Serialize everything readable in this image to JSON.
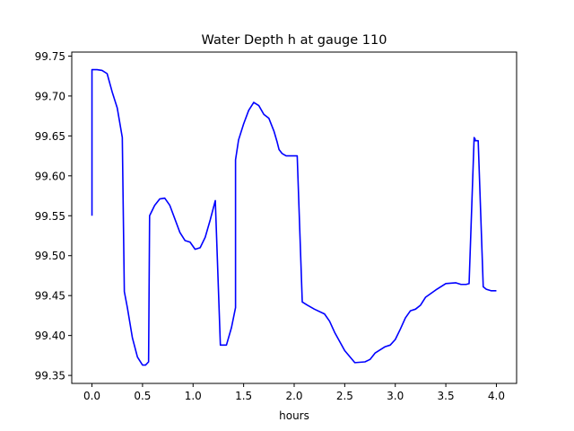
{
  "chart_data": {
    "type": "line",
    "title": "Water Depth h at gauge 110",
    "xlabel": "hours",
    "ylabel": "",
    "xlim": [
      -0.2,
      4.2
    ],
    "ylim": [
      99.34,
      99.755
    ],
    "xticks": [
      0.0,
      0.5,
      1.0,
      1.5,
      2.0,
      2.5,
      3.0,
      3.5,
      4.0
    ],
    "xtick_labels": [
      "0.0",
      "0.5",
      "1.0",
      "1.5",
      "2.0",
      "2.5",
      "3.0",
      "3.5",
      "4.0"
    ],
    "yticks": [
      99.35,
      99.4,
      99.45,
      99.5,
      99.55,
      99.6,
      99.65,
      99.7,
      99.75
    ],
    "ytick_labels": [
      "99.35",
      "99.40",
      "99.45",
      "99.50",
      "99.55",
      "99.60",
      "99.65",
      "99.70",
      "99.75"
    ],
    "grid": false,
    "legend": "none",
    "series": [
      {
        "color": "#0000ff",
        "x": [
          0.0,
          0.0,
          0.05,
          0.1,
          0.15,
          0.2,
          0.25,
          0.3,
          0.32,
          0.32,
          0.35,
          0.4,
          0.45,
          0.5,
          0.53,
          0.56,
          0.57,
          0.57,
          0.62,
          0.67,
          0.72,
          0.77,
          0.82,
          0.87,
          0.92,
          0.97,
          1.02,
          1.07,
          1.12,
          1.17,
          1.22,
          1.27,
          1.33,
          1.33,
          1.38,
          1.42,
          1.42,
          1.45,
          1.5,
          1.55,
          1.6,
          1.65,
          1.7,
          1.75,
          1.8,
          1.83,
          1.85,
          1.88,
          1.92,
          1.97,
          2.0,
          2.03,
          2.08,
          2.08,
          2.13,
          2.2,
          2.3,
          2.35,
          2.4,
          2.5,
          2.6,
          2.7,
          2.75,
          2.8,
          2.9,
          2.95,
          3.0,
          3.05,
          3.1,
          3.15,
          3.2,
          3.25,
          3.3,
          3.4,
          3.5,
          3.6,
          3.65,
          3.7,
          3.73,
          3.78,
          3.79,
          3.79,
          3.82,
          3.87,
          3.87,
          3.9,
          3.95,
          4.0
        ],
        "y": [
          99.55,
          99.733,
          99.733,
          99.732,
          99.728,
          99.705,
          99.685,
          99.648,
          99.455,
          99.455,
          99.435,
          99.397,
          99.373,
          99.363,
          99.363,
          99.367,
          99.55,
          99.55,
          99.563,
          99.571,
          99.572,
          99.563,
          99.546,
          99.529,
          99.519,
          99.517,
          99.508,
          99.51,
          99.523,
          99.545,
          99.569,
          99.388,
          99.388,
          99.388,
          99.41,
          99.435,
          99.62,
          99.645,
          99.665,
          99.682,
          99.692,
          99.688,
          99.677,
          99.672,
          99.656,
          99.643,
          99.633,
          99.628,
          99.625,
          99.625,
          99.625,
          99.625,
          99.442,
          99.442,
          99.438,
          99.433,
          99.427,
          99.418,
          99.404,
          99.381,
          99.366,
          99.367,
          99.37,
          99.378,
          99.386,
          99.388,
          99.395,
          99.408,
          99.422,
          99.431,
          99.433,
          99.438,
          99.448,
          99.457,
          99.465,
          99.466,
          99.464,
          99.464,
          99.465,
          99.648,
          99.646,
          99.644,
          99.644,
          99.461,
          99.461,
          99.458,
          99.456,
          99.456
        ]
      }
    ]
  }
}
